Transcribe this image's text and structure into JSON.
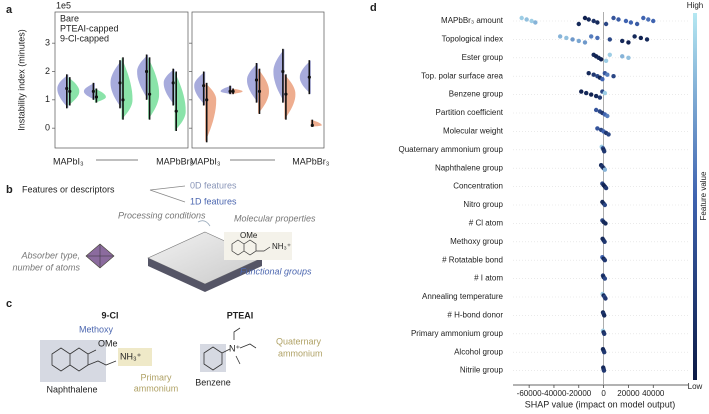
{
  "panel_labels": [
    "a",
    "b",
    "c",
    "d"
  ],
  "chart_data": [
    {
      "type": "violin",
      "y_label": "Instability index (minutes)",
      "y_offset_label": "1e5",
      "ylim": [
        -0.7,
        4.1
      ],
      "yticks": [
        0,
        1,
        2,
        3
      ],
      "categories": [
        "MAPbI₃",
        null,
        null,
        null,
        "MAPbBr₃",
        "MAPbI₃",
        null,
        null,
        null,
        "MAPbBr₃"
      ],
      "series": [
        {
          "name": "Bare",
          "color": "#8a8fd0",
          "values": [
            1.4,
            1.3,
            1.6,
            2.0,
            1.6,
            1.5,
            1.3,
            1.7,
            2.0,
            1.8
          ],
          "low": [
            0.7,
            1.0,
            0.7,
            1.0,
            0.8,
            0.8,
            1.2,
            0.9,
            0.9,
            1.2
          ],
          "high": [
            1.9,
            1.6,
            2.4,
            2.6,
            2.1,
            2.0,
            1.5,
            2.3,
            2.8,
            2.4
          ]
        },
        {
          "name": "PTEAI-capped",
          "color": "#63d98c",
          "values": [
            1.3,
            1.1,
            1.0,
            1.2,
            0.6,
            null,
            null,
            null,
            null,
            null
          ],
          "low": [
            0.8,
            0.9,
            0.3,
            0.3,
            -0.1,
            null,
            null,
            null,
            null,
            null
          ],
          "high": [
            1.8,
            1.4,
            2.5,
            2.5,
            2.0,
            null,
            null,
            null,
            null,
            null
          ]
        },
        {
          "name": "9-Cl-capped",
          "color": "#e8916a",
          "values": [
            null,
            null,
            null,
            null,
            null,
            1.0,
            1.3,
            1.3,
            1.2,
            0.1
          ],
          "low": [
            null,
            null,
            null,
            null,
            null,
            -0.5,
            1.2,
            0.5,
            0.3,
            0.05
          ],
          "high": [
            null,
            null,
            null,
            null,
            null,
            1.6,
            1.4,
            2.1,
            1.9,
            0.3
          ]
        }
      ]
    },
    {
      "type": "beeswarm",
      "categories": [
        "MAPbBr₃ amount",
        "Topological index",
        "Ester group",
        "Top. polar surface area",
        "Benzene group",
        "Partition coefficient",
        "Molecular weight",
        "Quaternary ammonium group",
        "Naphthalene group",
        "Concentration",
        "Nitro group",
        "# Cl atom",
        "Methoxy group",
        "# Rotatable bond",
        "# I atom",
        "Annealing temperature",
        "# H-bond donor",
        "Primary ammonium group",
        "Alcohol group",
        "Nitrile group"
      ],
      "shap": [
        [
          -66000,
          -62000,
          -58000,
          -55000,
          -20000,
          -15000,
          -12000,
          -8000,
          -5000,
          2000,
          8000,
          12000,
          18000,
          22000,
          27000,
          32000,
          36000,
          40000
        ],
        [
          -35000,
          -30000,
          -25000,
          -20000,
          -15000,
          -10000,
          -5000,
          5000,
          15000,
          20000,
          25000,
          30000,
          35000
        ],
        [
          -8000,
          -6000,
          -4000,
          -2000,
          2000,
          5000,
          15000,
          20000
        ],
        [
          -12000,
          -8000,
          -5000,
          -3000,
          -1000,
          1000,
          3000,
          8000
        ],
        [
          -18000,
          -14000,
          -10000,
          -6000,
          -3000,
          -1000,
          1000
        ],
        [
          -6000,
          -3000,
          -1000,
          1000,
          3000
        ],
        [
          -5000,
          -2000,
          0,
          2000,
          4000
        ],
        [
          -1500,
          -500,
          0,
          500
        ],
        [
          -2000,
          -1000,
          0,
          1000
        ],
        [
          -1000,
          0,
          1000,
          2000
        ],
        [
          -1000,
          0,
          1000
        ],
        [
          -1000,
          0,
          1500
        ],
        [
          -800,
          0,
          800
        ],
        [
          -1000,
          0,
          1000
        ],
        [
          -500,
          0,
          1000
        ],
        [
          -800,
          0,
          800,
          1500
        ],
        [
          -500,
          0,
          500
        ],
        [
          -500,
          0,
          500
        ],
        [
          -500,
          0,
          500
        ],
        [
          -300,
          0,
          300
        ]
      ],
      "feature_values": [
        [
          0.9,
          0.85,
          0.9,
          0.8,
          0.1,
          0.05,
          0.1,
          0.15,
          0.1,
          0.3,
          0.4,
          0.45,
          0.5,
          0.5,
          0.45,
          0.5,
          0.55,
          0.5
        ],
        [
          0.8,
          0.85,
          0.7,
          0.75,
          0.7,
          0.6,
          0.55,
          0.3,
          0.1,
          0.05,
          0.1,
          0.05,
          0.1
        ],
        [
          0.1,
          0.05,
          0.1,
          0.05,
          0.9,
          0.9,
          0.8,
          0.85
        ],
        [
          0.1,
          0.2,
          0.3,
          0.1,
          0.5,
          0.4,
          0.6,
          0.3
        ],
        [
          0.05,
          0.1,
          0.05,
          0.1,
          0.2,
          0.3,
          0.9
        ],
        [
          0.4,
          0.3,
          0.2,
          0.5,
          0.6
        ],
        [
          0.4,
          0.3,
          0.5,
          0.2,
          0.3
        ],
        [
          0.9,
          0.3,
          0.1,
          0.2
        ],
        [
          0.1,
          0.2,
          0.1,
          0.8
        ],
        [
          0.3,
          0.1,
          0.05,
          0.2
        ],
        [
          0.1,
          0.1,
          0.3
        ],
        [
          0.3,
          0.1,
          0.1
        ],
        [
          0.1,
          0.1,
          0.2
        ],
        [
          0.5,
          0.1,
          0.2
        ],
        [
          0.2,
          0.1,
          0.3
        ],
        [
          0.9,
          0.1,
          0.3,
          0.2
        ],
        [
          0.1,
          0.2,
          0.1
        ],
        [
          0.9,
          0.1,
          0.2
        ],
        [
          0.1,
          0.1,
          0.2
        ],
        [
          0.1,
          0.1,
          0.2
        ]
      ],
      "xlim": [
        -73000,
        68000
      ],
      "xticks": [
        -60000,
        -40000,
        -20000,
        0,
        20000,
        40000
      ],
      "x_label": "SHAP value (impact on model output)",
      "colorbar_label": "Feature value",
      "colorbar_high": "High",
      "colorbar_low": "Low",
      "colormap": [
        "#0b1a45",
        "#3f63b0",
        "#b5e8f2"
      ]
    }
  ],
  "panel_b": {
    "title": "Features or descriptors",
    "feature_kinds": [
      "0D features",
      "1D features"
    ],
    "processing": "Processing conditions",
    "molecular": "Molecular properties",
    "absorber": [
      "Absorber type,",
      "number of atoms"
    ],
    "functional": "Functional groups",
    "molecule_labels": [
      "OMe",
      "NH₃⁺"
    ]
  },
  "panel_c": {
    "molecules": [
      "9-Cl",
      "PTEAI"
    ],
    "methoxy": "Methoxy",
    "ome": "OMe",
    "nh3": "NH₃⁺",
    "naphthalene": "Naphthalene",
    "primary": [
      "Primary",
      "ammonium"
    ],
    "n_plus": "N⁺",
    "quaternary": [
      "Quaternary",
      "ammonium"
    ],
    "benzene": "Benzene"
  }
}
